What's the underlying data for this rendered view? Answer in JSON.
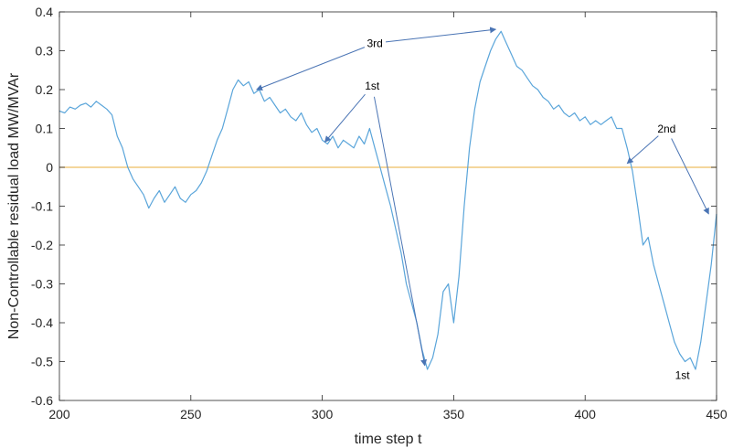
{
  "chart_data": {
    "type": "line",
    "title": "",
    "xlabel": "time step t",
    "ylabel": "Non-Controllable residual load MW/MVAr",
    "xlim": [
      200,
      450
    ],
    "ylim": [
      -0.6,
      0.4
    ],
    "xticks": [
      200,
      250,
      300,
      350,
      400,
      450
    ],
    "xtick_labels": [
      "200",
      "250",
      "300",
      "350",
      "400",
      "450"
    ],
    "yticks": [
      -0.6,
      -0.5,
      -0.4,
      -0.3,
      -0.2,
      -0.1,
      0,
      0.1,
      0.2,
      0.3,
      0.4
    ],
    "ytick_labels": [
      "-0.6",
      "-0.5",
      "-0.4",
      "-0.3",
      "-0.2",
      "-0.1",
      "0",
      "0.1",
      "0.2",
      "0.3",
      "0.4"
    ],
    "grid": false,
    "series": [
      {
        "color": "#5aa5da",
        "x": [
          200,
          202,
          204,
          206,
          208,
          210,
          212,
          214,
          216,
          218,
          220,
          222,
          224,
          226,
          228,
          230,
          232,
          234,
          236,
          238,
          240,
          242,
          244,
          246,
          248,
          250,
          252,
          254,
          256,
          258,
          260,
          262,
          264,
          266,
          268,
          270,
          272,
          274,
          276,
          278,
          280,
          282,
          284,
          286,
          288,
          290,
          292,
          294,
          296,
          298,
          300,
          302,
          304,
          306,
          308,
          310,
          312,
          314,
          316,
          318,
          320,
          322,
          324,
          326,
          328,
          330,
          332,
          334,
          336,
          338,
          340,
          342,
          344,
          346,
          348,
          350,
          352,
          354,
          356,
          358,
          360,
          362,
          364,
          366,
          368,
          370,
          372,
          374,
          376,
          378,
          380,
          382,
          384,
          386,
          388,
          390,
          392,
          394,
          396,
          398,
          400,
          402,
          404,
          406,
          408,
          410,
          412,
          414,
          416,
          418,
          420,
          422,
          424,
          426,
          428,
          430,
          432,
          434,
          436,
          438,
          440,
          442,
          444,
          446,
          448,
          450
        ],
        "values": [
          0.145,
          0.14,
          0.155,
          0.15,
          0.16,
          0.165,
          0.155,
          0.17,
          0.16,
          0.15,
          0.135,
          0.08,
          0.05,
          0.0,
          -0.03,
          -0.05,
          -0.07,
          -0.105,
          -0.08,
          -0.06,
          -0.09,
          -0.07,
          -0.05,
          -0.08,
          -0.09,
          -0.07,
          -0.06,
          -0.04,
          -0.01,
          0.03,
          0.07,
          0.1,
          0.15,
          0.2,
          0.225,
          0.21,
          0.22,
          0.19,
          0.2,
          0.17,
          0.18,
          0.16,
          0.14,
          0.15,
          0.13,
          0.12,
          0.14,
          0.11,
          0.09,
          0.1,
          0.07,
          0.06,
          0.08,
          0.05,
          0.07,
          0.06,
          0.05,
          0.08,
          0.06,
          0.1,
          0.05,
          0.0,
          -0.05,
          -0.1,
          -0.16,
          -0.22,
          -0.3,
          -0.35,
          -0.4,
          -0.47,
          -0.52,
          -0.49,
          -0.43,
          -0.32,
          -0.3,
          -0.4,
          -0.28,
          -0.1,
          0.05,
          0.15,
          0.22,
          0.26,
          0.3,
          0.33,
          0.35,
          0.32,
          0.29,
          0.26,
          0.25,
          0.23,
          0.21,
          0.2,
          0.18,
          0.17,
          0.15,
          0.16,
          0.14,
          0.13,
          0.14,
          0.12,
          0.13,
          0.11,
          0.12,
          0.11,
          0.12,
          0.13,
          0.1,
          0.1,
          0.05,
          -0.01,
          -0.1,
          -0.2,
          -0.18,
          -0.25,
          -0.3,
          -0.35,
          -0.4,
          -0.45,
          -0.48,
          -0.5,
          -0.49,
          -0.52,
          -0.45,
          -0.35,
          -0.25,
          -0.12
        ]
      }
    ],
    "reference_lines": [
      {
        "y": 0,
        "color": "#eebd60"
      }
    ],
    "annotations": [
      {
        "label": "3rd",
        "x": 320,
        "y": 0.31,
        "arrows_to": [
          [
            275,
            0.2
          ],
          [
            366,
            0.355
          ]
        ]
      },
      {
        "label": "1st",
        "x": 319,
        "y": 0.2,
        "arrows_to": [
          [
            301,
            0.065
          ],
          [
            339,
            -0.51
          ]
        ]
      },
      {
        "label": "2nd",
        "x": 431,
        "y": 0.09,
        "arrows_to": [
          [
            416,
            0.01
          ],
          [
            447,
            -0.12
          ]
        ]
      },
      {
        "label": "1st",
        "x": 437,
        "y": -0.545,
        "arrows_to": []
      }
    ]
  }
}
